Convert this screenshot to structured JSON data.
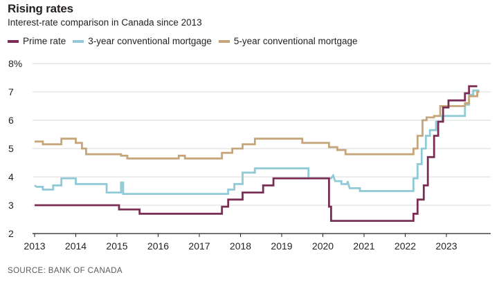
{
  "title": "Rising rates",
  "subtitle": "Interest-rate comparison in Canada since 2013",
  "source": "SOURCE: BANK OF CANADA",
  "colors": {
    "prime": "#7a2e55",
    "three_year": "#8fcad6",
    "five_year": "#c7a57b",
    "axis": "#231f20",
    "grid": "#d9d9d9"
  },
  "chart_data": {
    "type": "line",
    "title": "Rising rates",
    "subtitle": "Interest-rate comparison in Canada since 2013",
    "xlabel": "",
    "ylabel": "",
    "xlim": [
      2013,
      2023.95
    ],
    "ylim": [
      2,
      8
    ],
    "x_ticks": [
      "2013",
      "2014",
      "2015",
      "2016",
      "2017",
      "2018",
      "2019",
      "2020",
      "2021",
      "2022",
      "2023"
    ],
    "y_ticks": [
      "2",
      "3",
      "4",
      "5",
      "6",
      "7",
      "8%"
    ],
    "grid": "horizontal",
    "legend_placement": "top-left",
    "series": [
      {
        "name": "Prime rate",
        "color": "#7a2e55",
        "points": [
          [
            2013.0,
            3.0
          ],
          [
            2015.05,
            3.0
          ],
          [
            2015.05,
            2.85
          ],
          [
            2015.55,
            2.85
          ],
          [
            2015.55,
            2.7
          ],
          [
            2017.55,
            2.7
          ],
          [
            2017.55,
            2.95
          ],
          [
            2017.7,
            2.95
          ],
          [
            2017.7,
            3.2
          ],
          [
            2018.05,
            3.2
          ],
          [
            2018.05,
            3.45
          ],
          [
            2018.55,
            3.45
          ],
          [
            2018.55,
            3.7
          ],
          [
            2018.8,
            3.7
          ],
          [
            2018.8,
            3.95
          ],
          [
            2020.15,
            3.95
          ],
          [
            2020.15,
            2.95
          ],
          [
            2020.2,
            2.95
          ],
          [
            2020.2,
            2.45
          ],
          [
            2022.2,
            2.45
          ],
          [
            2022.2,
            2.7
          ],
          [
            2022.3,
            2.7
          ],
          [
            2022.3,
            3.2
          ],
          [
            2022.45,
            3.2
          ],
          [
            2022.45,
            3.7
          ],
          [
            2022.55,
            3.7
          ],
          [
            2022.55,
            4.7
          ],
          [
            2022.7,
            4.7
          ],
          [
            2022.7,
            5.45
          ],
          [
            2022.8,
            5.45
          ],
          [
            2022.8,
            5.95
          ],
          [
            2022.92,
            5.95
          ],
          [
            2022.92,
            6.45
          ],
          [
            2023.05,
            6.45
          ],
          [
            2023.05,
            6.7
          ],
          [
            2023.45,
            6.7
          ],
          [
            2023.45,
            6.95
          ],
          [
            2023.55,
            6.95
          ],
          [
            2023.55,
            7.2
          ],
          [
            2023.75,
            7.2
          ]
        ]
      },
      {
        "name": "3-year conventional mortgage",
        "color": "#8fcad6",
        "points": [
          [
            2013.0,
            3.7
          ],
          [
            2013.05,
            3.65
          ],
          [
            2013.2,
            3.65
          ],
          [
            2013.2,
            3.55
          ],
          [
            2013.45,
            3.55
          ],
          [
            2013.45,
            3.7
          ],
          [
            2013.65,
            3.7
          ],
          [
            2013.65,
            3.95
          ],
          [
            2014.0,
            3.95
          ],
          [
            2014.0,
            3.75
          ],
          [
            2014.75,
            3.75
          ],
          [
            2014.75,
            3.45
          ],
          [
            2015.1,
            3.45
          ],
          [
            2015.1,
            3.8
          ],
          [
            2015.15,
            3.8
          ],
          [
            2015.15,
            3.4
          ],
          [
            2017.7,
            3.4
          ],
          [
            2017.7,
            3.55
          ],
          [
            2017.85,
            3.55
          ],
          [
            2017.85,
            3.75
          ],
          [
            2018.05,
            3.75
          ],
          [
            2018.05,
            4.15
          ],
          [
            2018.35,
            4.15
          ],
          [
            2018.35,
            4.3
          ],
          [
            2019.65,
            4.3
          ],
          [
            2019.65,
            3.95
          ],
          [
            2020.2,
            3.95
          ],
          [
            2020.25,
            4.05
          ],
          [
            2020.3,
            3.85
          ],
          [
            2020.45,
            3.85
          ],
          [
            2020.45,
            3.75
          ],
          [
            2020.6,
            3.75
          ],
          [
            2020.6,
            3.85
          ],
          [
            2020.65,
            3.6
          ],
          [
            2020.9,
            3.6
          ],
          [
            2020.9,
            3.5
          ],
          [
            2022.2,
            3.5
          ],
          [
            2022.2,
            3.95
          ],
          [
            2022.3,
            3.95
          ],
          [
            2022.3,
            4.45
          ],
          [
            2022.4,
            4.45
          ],
          [
            2022.4,
            5.0
          ],
          [
            2022.5,
            5.0
          ],
          [
            2022.5,
            5.45
          ],
          [
            2022.6,
            5.45
          ],
          [
            2022.6,
            5.65
          ],
          [
            2022.75,
            5.65
          ],
          [
            2022.75,
            5.95
          ],
          [
            2022.9,
            5.95
          ],
          [
            2022.9,
            6.15
          ],
          [
            2023.45,
            6.15
          ],
          [
            2023.45,
            6.55
          ],
          [
            2023.55,
            6.55
          ],
          [
            2023.55,
            6.9
          ],
          [
            2023.65,
            6.9
          ],
          [
            2023.65,
            7.05
          ],
          [
            2023.8,
            7.05
          ]
        ]
      },
      {
        "name": "5-year conventional mortgage",
        "color": "#c7a57b",
        "points": [
          [
            2013.0,
            5.25
          ],
          [
            2013.2,
            5.25
          ],
          [
            2013.2,
            5.15
          ],
          [
            2013.65,
            5.15
          ],
          [
            2013.65,
            5.35
          ],
          [
            2014.0,
            5.35
          ],
          [
            2014.0,
            5.2
          ],
          [
            2014.15,
            5.2
          ],
          [
            2014.15,
            5.0
          ],
          [
            2014.25,
            5.0
          ],
          [
            2014.25,
            4.8
          ],
          [
            2015.1,
            4.8
          ],
          [
            2015.1,
            4.75
          ],
          [
            2015.25,
            4.75
          ],
          [
            2015.25,
            4.65
          ],
          [
            2016.5,
            4.65
          ],
          [
            2016.5,
            4.75
          ],
          [
            2016.65,
            4.75
          ],
          [
            2016.65,
            4.65
          ],
          [
            2017.55,
            4.65
          ],
          [
            2017.55,
            4.85
          ],
          [
            2017.8,
            4.85
          ],
          [
            2017.8,
            5.0
          ],
          [
            2018.05,
            5.0
          ],
          [
            2018.05,
            5.15
          ],
          [
            2018.35,
            5.15
          ],
          [
            2018.35,
            5.35
          ],
          [
            2019.5,
            5.35
          ],
          [
            2019.5,
            5.2
          ],
          [
            2020.15,
            5.2
          ],
          [
            2020.15,
            5.05
          ],
          [
            2020.35,
            5.05
          ],
          [
            2020.35,
            4.95
          ],
          [
            2020.55,
            4.95
          ],
          [
            2020.55,
            4.8
          ],
          [
            2022.2,
            4.8
          ],
          [
            2022.2,
            5.0
          ],
          [
            2022.3,
            5.0
          ],
          [
            2022.3,
            5.45
          ],
          [
            2022.42,
            5.45
          ],
          [
            2022.42,
            6.0
          ],
          [
            2022.52,
            6.0
          ],
          [
            2022.52,
            6.1
          ],
          [
            2022.7,
            6.1
          ],
          [
            2022.7,
            6.15
          ],
          [
            2022.85,
            6.15
          ],
          [
            2022.85,
            6.5
          ],
          [
            2023.45,
            6.5
          ],
          [
            2023.45,
            6.6
          ],
          [
            2023.55,
            6.6
          ],
          [
            2023.55,
            6.85
          ],
          [
            2023.75,
            6.85
          ],
          [
            2023.75,
            7.0
          ],
          [
            2023.8,
            7.0
          ]
        ]
      }
    ]
  }
}
